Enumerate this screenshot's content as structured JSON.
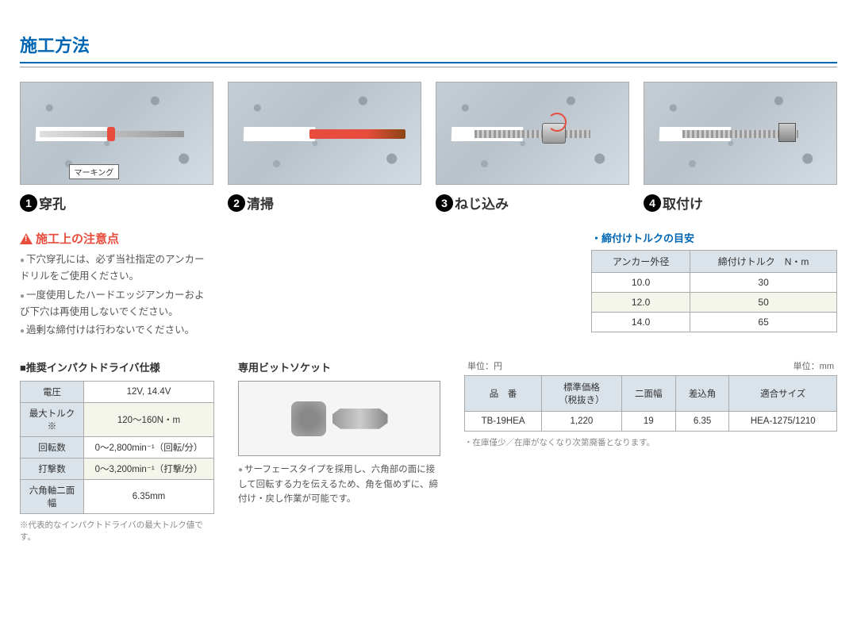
{
  "title": "施工方法",
  "steps": [
    {
      "num": "1",
      "label": "穿孔",
      "marking": "マーキング"
    },
    {
      "num": "2",
      "label": "清掃"
    },
    {
      "num": "3",
      "label": "ねじ込み"
    },
    {
      "num": "4",
      "label": "取付け"
    }
  ],
  "caution": {
    "title": "施工上の注意点",
    "items": [
      "下穴穿孔には、必ず当社指定のアンカードリルをご使用ください。",
      "一度使用したハードエッジアンカーおよび下穴は再使用しないでください。",
      "過剰な締付けは行わないでください。"
    ]
  },
  "torque": {
    "title": "・締付けトルクの目安",
    "headers": [
      "アンカー外径",
      "締付けトルク　N・m"
    ],
    "rows": [
      {
        "d": "10.0",
        "t": "30",
        "hl": false
      },
      {
        "d": "12.0",
        "t": "50",
        "hl": true
      },
      {
        "d": "14.0",
        "t": "65",
        "hl": false
      }
    ]
  },
  "driver": {
    "heading": "■推奨インパクトドライバ仕様",
    "rows": [
      {
        "k": "電圧",
        "v": "12V, 14.4V",
        "hl": false
      },
      {
        "k": "最大トルク※",
        "v": "120～160N・m",
        "hl": true
      },
      {
        "k": "回転数",
        "v": "0～2,800min⁻¹（回転/分）",
        "hl": false
      },
      {
        "k": "打撃数",
        "v": "0～3,200min⁻¹（打撃/分）",
        "hl": true
      },
      {
        "k": "六角軸二面幅",
        "v": "6.35mm",
        "hl": false
      }
    ],
    "footnote": "※代表的なインパクトドライバの最大トルク値です。"
  },
  "socket": {
    "heading": "専用ビットソケット",
    "desc": "サーフェースタイプを採用し、六角部の面に接して回転する力を伝えるため、角を傷めずに、締付け・戻し作業が可能です。"
  },
  "product": {
    "unit_left": "単位：円",
    "unit_right": "単位：mm",
    "headers": [
      "品　番",
      "標準価格\n（税抜き）",
      "二面幅",
      "差込角",
      "適合サイズ"
    ],
    "row": {
      "code": "TB-19HEA",
      "price": "1,220",
      "width": "19",
      "angle": "6.35",
      "size": "HEA-1275/1210"
    },
    "stock_note": "・在庫僅少／在庫がなくなり次第廃番となります。"
  }
}
